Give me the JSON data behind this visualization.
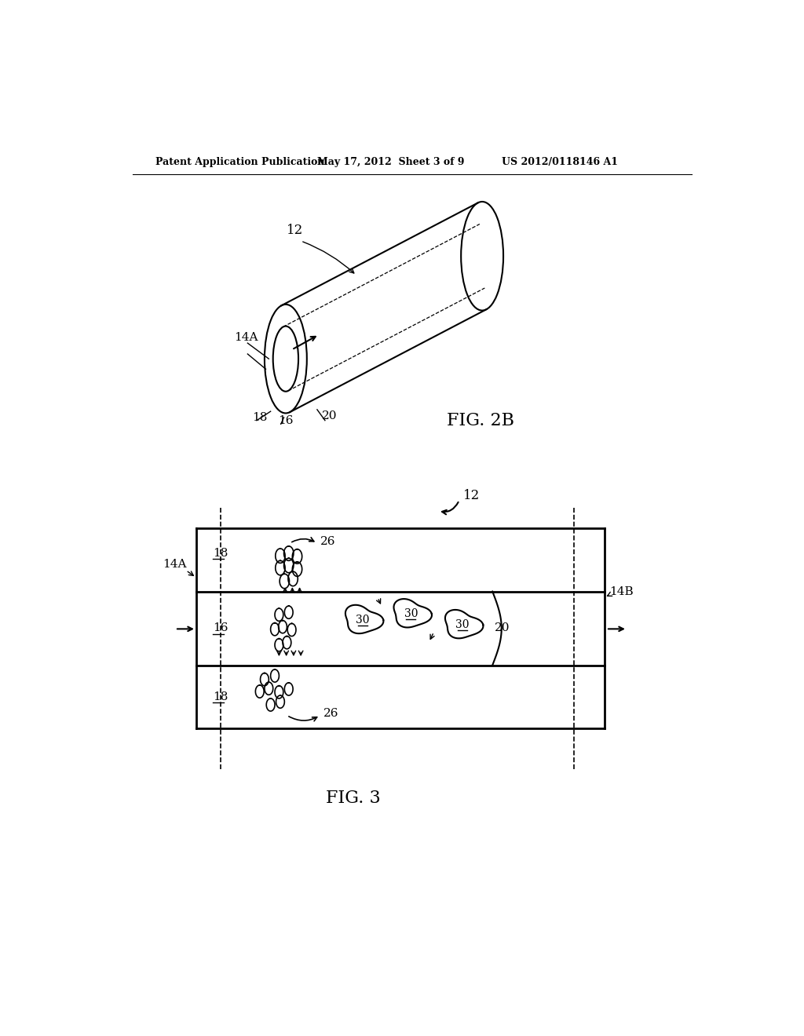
{
  "header_left": "Patent Application Publication",
  "header_mid": "May 17, 2012  Sheet 3 of 9",
  "header_right": "US 2012/0118146 A1",
  "fig2b_label": "FIG. 2B",
  "fig3_label": "FIG. 3",
  "bg_color": "#ffffff",
  "line_color": "#000000"
}
